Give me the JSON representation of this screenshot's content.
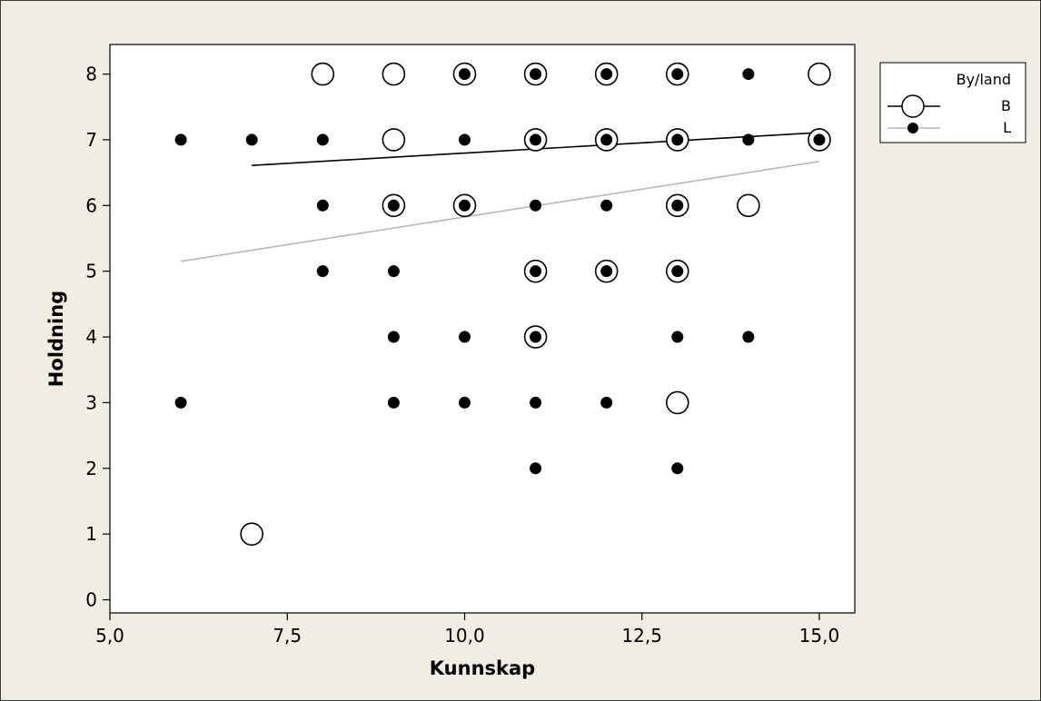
{
  "chart_data": {
    "type": "scatter",
    "xlabel": "Kunnskap",
    "ylabel": "Holdning",
    "xlim": [
      5.0,
      15.5
    ],
    "ylim": [
      -0.2,
      8.45
    ],
    "xticks": [
      {
        "value": 5.0,
        "label": "5,0"
      },
      {
        "value": 7.5,
        "label": "7,5"
      },
      {
        "value": 10.0,
        "label": "10,0"
      },
      {
        "value": 12.5,
        "label": "12,5"
      },
      {
        "value": 15.0,
        "label": "15,0"
      }
    ],
    "yticks": [
      {
        "value": 0,
        "label": "0"
      },
      {
        "value": 1,
        "label": "1"
      },
      {
        "value": 2,
        "label": "2"
      },
      {
        "value": 3,
        "label": "3"
      },
      {
        "value": 4,
        "label": "4"
      },
      {
        "value": 5,
        "label": "5"
      },
      {
        "value": 6,
        "label": "6"
      },
      {
        "value": 7,
        "label": "7"
      },
      {
        "value": 8,
        "label": "8"
      }
    ],
    "grid": false,
    "legend": {
      "title": "By/land",
      "placement": "top-right outside plot"
    },
    "series": [
      {
        "name": "B",
        "marker": "open-circle",
        "line_color": "#000000",
        "points": [
          [
            7,
            1
          ],
          [
            8,
            8
          ],
          [
            9,
            6
          ],
          [
            9,
            7
          ],
          [
            9,
            8
          ],
          [
            10,
            6
          ],
          [
            10,
            8
          ],
          [
            11,
            4
          ],
          [
            11,
            5
          ],
          [
            11,
            7
          ],
          [
            11,
            8
          ],
          [
            12,
            5
          ],
          [
            12,
            7
          ],
          [
            12,
            8
          ],
          [
            13,
            3
          ],
          [
            13,
            5
          ],
          [
            13,
            6
          ],
          [
            13,
            7
          ],
          [
            13,
            8
          ],
          [
            14,
            6
          ],
          [
            15,
            7
          ],
          [
            15,
            8
          ]
        ],
        "fit_line": {
          "x": [
            7,
            15
          ],
          "y": [
            6.61,
            7.11
          ]
        }
      },
      {
        "name": "L",
        "marker": "filled-dot",
        "line_color": "#b8b8b8",
        "points": [
          [
            6,
            3
          ],
          [
            6,
            7
          ],
          [
            7,
            7
          ],
          [
            8,
            5
          ],
          [
            8,
            6
          ],
          [
            8,
            7
          ],
          [
            9,
            3
          ],
          [
            9,
            4
          ],
          [
            9,
            5
          ],
          [
            9,
            6
          ],
          [
            10,
            3
          ],
          [
            10,
            4
          ],
          [
            10,
            6
          ],
          [
            10,
            7
          ],
          [
            10,
            8
          ],
          [
            11,
            2
          ],
          [
            11,
            3
          ],
          [
            11,
            4
          ],
          [
            11,
            5
          ],
          [
            11,
            6
          ],
          [
            11,
            7
          ],
          [
            11,
            8
          ],
          [
            12,
            3
          ],
          [
            12,
            5
          ],
          [
            12,
            6
          ],
          [
            12,
            7
          ],
          [
            12,
            8
          ],
          [
            13,
            2
          ],
          [
            13,
            4
          ],
          [
            13,
            5
          ],
          [
            13,
            6
          ],
          [
            13,
            7
          ],
          [
            13,
            8
          ],
          [
            14,
            4
          ],
          [
            14,
            7
          ],
          [
            14,
            8
          ],
          [
            15,
            7
          ]
        ],
        "fit_line": {
          "x": [
            6,
            15
          ],
          "y": [
            5.15,
            6.67
          ]
        }
      }
    ]
  }
}
